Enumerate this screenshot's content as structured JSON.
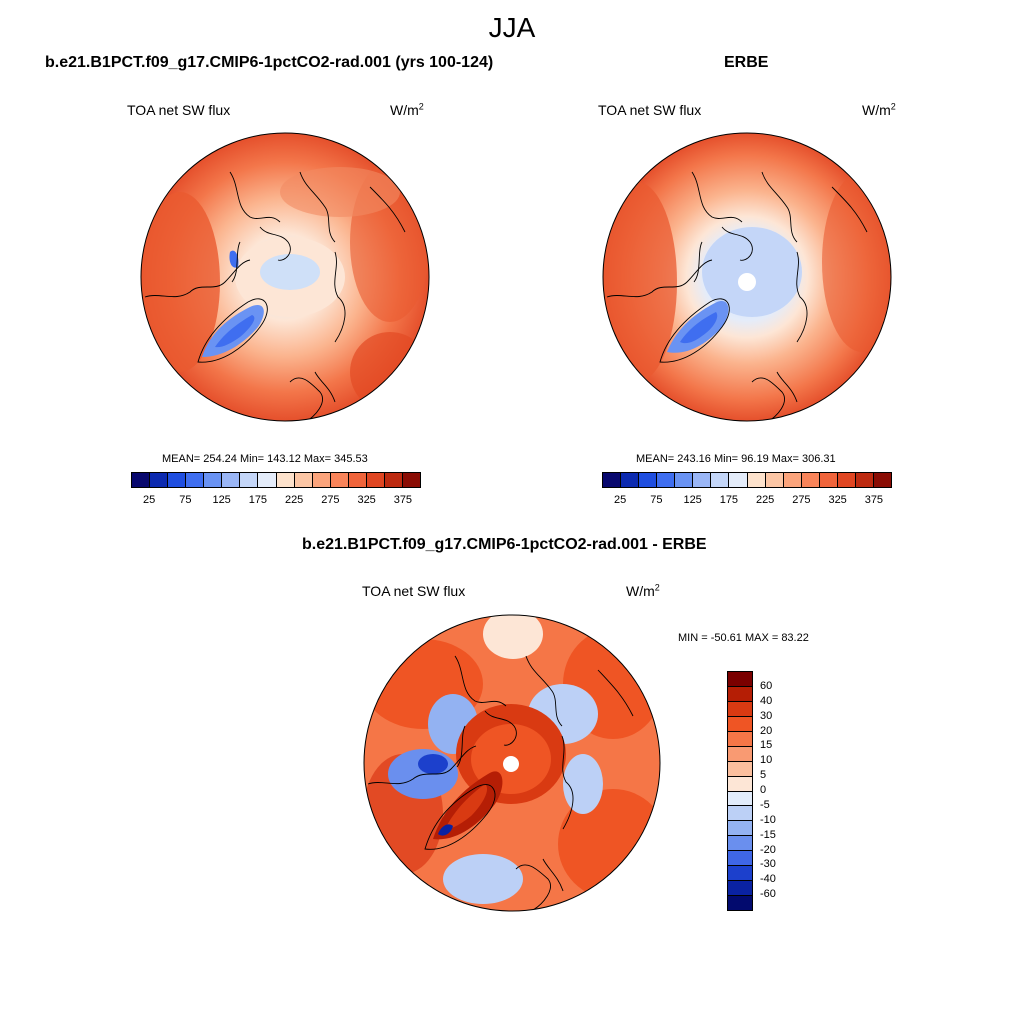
{
  "title": "JJA",
  "panels": {
    "model": {
      "title": "b.e21.B1PCT.f09_g17.CMIP6-1pctCO2-rad.001 (yrs 100-124)",
      "field": "TOA net SW flux",
      "units_base": "W/m",
      "units_exp": "2",
      "stats": "MEAN= 254.24  Min= 143.12  Max= 345.53"
    },
    "obs": {
      "title": "ERBE",
      "field": "TOA net SW flux",
      "units_base": "W/m",
      "units_exp": "2",
      "stats": "MEAN= 243.16  Min=  96.19  Max= 306.31"
    },
    "diff": {
      "title": "b.e21.B1PCT.f09_g17.CMIP6-1pctCO2-rad.001 - ERBE",
      "field": "TOA net SW flux",
      "units_base": "W/m",
      "units_exp": "2",
      "stats": "MIN = -50.61 MAX =  83.22"
    }
  },
  "colorbar_abs": {
    "labels": [
      "25",
      "75",
      "125",
      "175",
      "225",
      "275",
      "325",
      "375"
    ],
    "colors": [
      "#08086e",
      "#0c2ab0",
      "#1f4ee0",
      "#3f6ef0",
      "#6a93f3",
      "#9ab6f6",
      "#c4d6f8",
      "#e4ecfa",
      "#fde2cc",
      "#fcc6a5",
      "#fba47c",
      "#f8845a",
      "#f0643b",
      "#e04622",
      "#bd2a10",
      "#8a0c04"
    ]
  },
  "colorbar_diff": {
    "labels": [
      "60",
      "40",
      "30",
      "20",
      "15",
      "10",
      "5",
      "0",
      "-5",
      "-10",
      "-15",
      "-20",
      "-30",
      "-40",
      "-60"
    ],
    "colors": [
      "#7a0000",
      "#b51e05",
      "#d93a12",
      "#ef5524",
      "#f57647",
      "#f99a72",
      "#fbbf9e",
      "#fde6d6",
      "#e2ecfb",
      "#bcd0f6",
      "#93b2f2",
      "#6a8fee",
      "#3f66e6",
      "#1c40cc",
      "#0a22a2",
      "#020a6e"
    ]
  }
}
